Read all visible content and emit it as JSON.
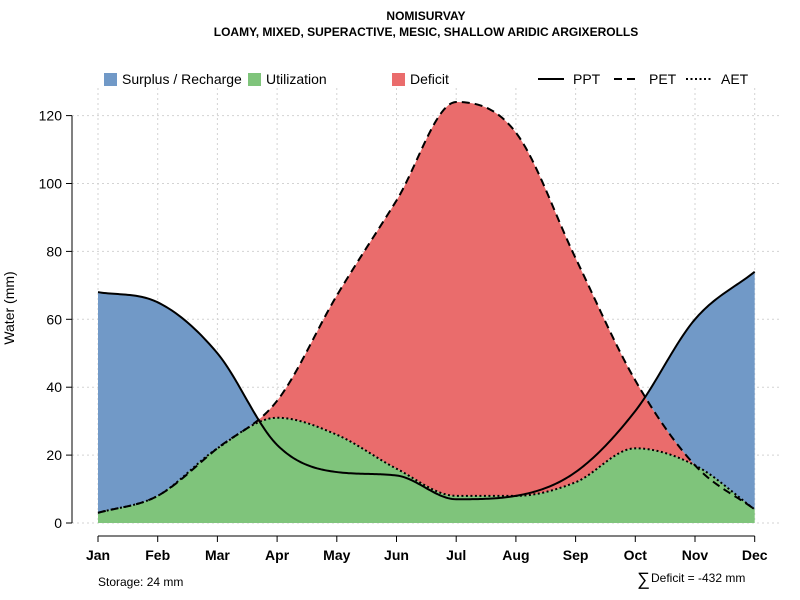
{
  "colors": {
    "surplus": "#7199c7",
    "utilization": "#7fc47b",
    "deficit": "#ea6c6c",
    "grid": "#d3d3d3",
    "axis": "#000000"
  },
  "chart_data": {
    "type": "area",
    "title": "NOMISURVAY",
    "subtitle": "LOAMY, MIXED, SUPERACTIVE, MESIC, SHALLOW ARIDIC ARGIXEROLLS",
    "xlabel": "",
    "ylabel": "Water (mm)",
    "ylim": [
      0,
      125
    ],
    "yticks": [
      0,
      20,
      40,
      60,
      80,
      100,
      120
    ],
    "grid": true,
    "legend_position": "top",
    "categories": [
      "Jan",
      "Feb",
      "Mar",
      "Apr",
      "May",
      "Jun",
      "Jul",
      "Aug",
      "Sep",
      "Oct",
      "Nov",
      "Dec"
    ],
    "series": [
      {
        "name": "PPT",
        "style": "solid",
        "values": [
          68,
          65,
          50,
          23,
          15,
          14,
          7,
          8,
          15,
          33,
          60,
          74
        ]
      },
      {
        "name": "PET",
        "style": "dashed",
        "values": [
          3,
          8,
          22,
          36,
          67,
          95,
          124,
          115,
          78,
          42,
          17,
          4
        ]
      },
      {
        "name": "AET",
        "style": "dotted",
        "values": [
          3,
          8,
          22,
          31,
          26,
          16,
          8,
          8,
          12,
          22,
          17,
          4
        ]
      }
    ],
    "legend": [
      {
        "label": "Surplus / Recharge",
        "kind": "box",
        "color_key": "surplus"
      },
      {
        "label": "Utilization",
        "kind": "box",
        "color_key": "utilization"
      },
      {
        "label": "Deficit",
        "kind": "box",
        "color_key": "deficit"
      },
      {
        "label": "PPT",
        "kind": "line",
        "style": "solid"
      },
      {
        "label": "PET",
        "kind": "line",
        "style": "dashed"
      },
      {
        "label": "AET",
        "kind": "line",
        "style": "dotted"
      }
    ],
    "annotations": {
      "storage": "Storage: 24 mm",
      "deficit_symbol": "∑",
      "deficit": "Deficit = -432 mm"
    }
  }
}
